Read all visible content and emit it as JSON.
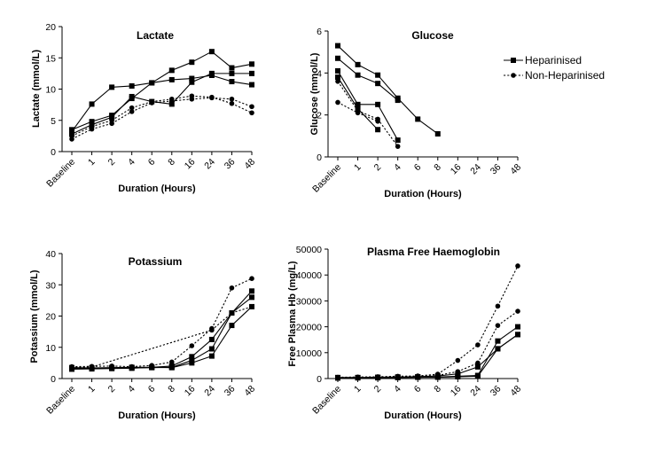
{
  "legend": {
    "items": [
      {
        "label": "Heparinised",
        "style": "solid",
        "marker": "square"
      },
      {
        "label": "Non-Heparinised",
        "style": "dotted",
        "marker": "circle"
      }
    ],
    "placement": "right"
  },
  "chart_data": [
    {
      "type": "line",
      "title": "Lactate",
      "xlabel": "Duration (Hours)",
      "ylabel": "Lactate (mmol/L)",
      "categories": [
        "Baseline",
        "1",
        "2",
        "4",
        "6",
        "8",
        "16",
        "24",
        "36",
        "48"
      ],
      "ylim": [
        0,
        20
      ],
      "yticks": [
        0,
        5,
        10,
        15,
        20
      ],
      "series": [
        {
          "group": "Heparinised",
          "values": [
            3.2,
            7.6,
            10.3,
            10.5,
            11.0,
            13.0,
            14.3,
            16.0,
            13.4,
            14.0
          ]
        },
        {
          "group": "Heparinised",
          "values": [
            3.5,
            4.8,
            5.8,
            8.5,
            11.0,
            11.5,
            11.7,
            12.2,
            11.2,
            10.7
          ]
        },
        {
          "group": "Heparinised",
          "values": [
            2.8,
            4.3,
            5.5,
            8.8,
            8.0,
            7.6,
            11.1,
            12.5,
            12.5,
            12.5
          ]
        },
        {
          "group": "Non-Heparinised",
          "values": [
            2.5,
            4.0,
            5.0,
            7.0,
            8.0,
            8.4,
            8.9,
            8.7,
            7.7,
            6.2
          ]
        },
        {
          "group": "Non-Heparinised",
          "values": [
            2.0,
            3.6,
            4.5,
            6.4,
            7.8,
            8.1,
            8.4,
            8.6,
            8.4,
            7.2
          ]
        }
      ]
    },
    {
      "type": "line",
      "title": "Glucose",
      "xlabel": "Duration (Hours)",
      "ylabel": "Glucose (mmol/L)",
      "categories": [
        "Baseline",
        "1",
        "2",
        "4",
        "6",
        "8",
        "16",
        "24",
        "36",
        "48"
      ],
      "ylim": [
        0,
        6
      ],
      "yticks": [
        0,
        2,
        4,
        6
      ],
      "series": [
        {
          "group": "Heparinised",
          "values": [
            5.3,
            4.4,
            3.9,
            2.8,
            1.8,
            1.1,
            null,
            null,
            null,
            null
          ]
        },
        {
          "group": "Heparinised",
          "values": [
            4.7,
            3.9,
            3.5,
            2.7,
            null,
            null,
            null,
            null,
            null,
            null
          ]
        },
        {
          "group": "Heparinised",
          "values": [
            4.1,
            2.5,
            2.5,
            0.8,
            null,
            null,
            null,
            null,
            null,
            null
          ]
        },
        {
          "group": "Heparinised",
          "values": [
            3.8,
            2.3,
            1.3,
            null,
            null,
            null,
            null,
            null,
            null,
            null
          ]
        },
        {
          "group": "Non-Heparinised",
          "values": [
            3.6,
            2.2,
            1.8,
            0.5,
            null,
            null,
            null,
            null,
            null,
            null
          ]
        },
        {
          "group": "Non-Heparinised",
          "values": [
            2.6,
            2.1,
            1.7,
            null,
            null,
            null,
            null,
            null,
            null,
            null
          ]
        }
      ]
    },
    {
      "type": "line",
      "title": "Potassium",
      "xlabel": "Duration (Hours)",
      "ylabel": "Potassium (mmol/L)",
      "categories": [
        "Baseline",
        "1",
        "2",
        "4",
        "6",
        "8",
        "16",
        "24",
        "36",
        "48"
      ],
      "ylim": [
        0,
        40
      ],
      "yticks": [
        0,
        10,
        20,
        30,
        40
      ],
      "series": [
        {
          "group": "Heparinised",
          "values": [
            3.5,
            3.4,
            3.5,
            3.6,
            3.6,
            3.5,
            5.0,
            7.2,
            17.0,
            23.0
          ]
        },
        {
          "group": "Heparinised",
          "values": [
            3.3,
            3.2,
            3.3,
            3.4,
            3.5,
            3.6,
            5.8,
            9.5,
            21.0,
            26.0
          ]
        },
        {
          "group": "Heparinised",
          "values": [
            3.0,
            3.1,
            3.2,
            3.3,
            3.6,
            4.0,
            7.0,
            12.5,
            21.0,
            28.0
          ]
        },
        {
          "group": "Non-Heparinised",
          "values": [
            3.8,
            3.9,
            4.0,
            3.8,
            4.2,
            5.3,
            10.5,
            16.0,
            29.0,
            32.0
          ]
        },
        {
          "group": "Non-Heparinised",
          "values": [
            3.6,
            3.7,
            null,
            null,
            null,
            null,
            null,
            15.5,
            21.0,
            23.0
          ]
        }
      ]
    },
    {
      "type": "line",
      "title": "Plasma Free Haemoglobin",
      "xlabel": "Duration (Hours)",
      "ylabel": "Free Plasma Hb (mg/L)",
      "categories": [
        "Baseline",
        "1",
        "2",
        "4",
        "6",
        "8",
        "16",
        "24",
        "36",
        "48"
      ],
      "ylim": [
        0,
        50000
      ],
      "yticks": [
        0,
        10000,
        20000,
        30000,
        40000,
        50000
      ],
      "series": [
        {
          "group": "Heparinised",
          "values": [
            300,
            300,
            400,
            400,
            500,
            500,
            700,
            900,
            11500,
            17000
          ]
        },
        {
          "group": "Heparinised",
          "values": [
            200,
            300,
            300,
            400,
            500,
            600,
            900,
            1200,
            14500,
            20000
          ]
        },
        {
          "group": "Heparinised",
          "values": [
            400,
            400,
            500,
            600,
            700,
            1000,
            1800,
            4500,
            11500,
            17000
          ]
        },
        {
          "group": "Non-Heparinised",
          "values": [
            500,
            600,
            700,
            900,
            1000,
            1700,
            7000,
            13000,
            28000,
            43500
          ]
        },
        {
          "group": "Non-Heparinised",
          "values": [
            300,
            400,
            600,
            700,
            800,
            1200,
            2700,
            6000,
            20500,
            26000
          ]
        }
      ]
    }
  ]
}
